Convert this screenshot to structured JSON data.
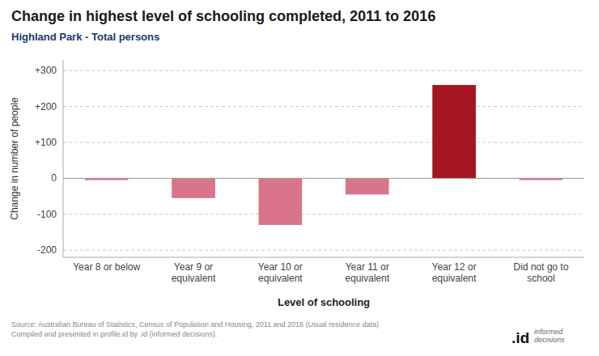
{
  "chart_data": {
    "type": "bar",
    "title": "Change in highest level of schooling completed, 2011 to 2016",
    "subtitle": "Highland Park - Total persons",
    "categories": [
      "Year 8 or below",
      "Year 9 or\nequivalent",
      "Year 10 or\nequivalent",
      "Year 11 or\nequivalent",
      "Year 12 or\nequivalent",
      "Did not go to\nschool"
    ],
    "values": [
      -5,
      -55,
      -130,
      -45,
      260,
      -5
    ],
    "colors": [
      "#d9748a",
      "#d9748a",
      "#d9748a",
      "#d9748a",
      "#a31621",
      "#d9748a"
    ],
    "xlabel": "Level of schooling",
    "ylabel": "Change in number of people",
    "ylim": [
      -220,
      330
    ],
    "yticks": [
      -200,
      -100,
      0,
      {
        "value": 100,
        "label": "+100"
      },
      {
        "value": 200,
        "label": "+200"
      },
      {
        "value": 300,
        "label": "+300"
      }
    ],
    "grid": true,
    "source": "Source: Australian Bureau of Statistics, Census of Population and Housing, 2011 and 2016 (Usual residence data)\nCompiled and presented in profile.id by .id (informed decisions).",
    "annotations": [
      ".id",
      "informed\ndecisions"
    ]
  }
}
